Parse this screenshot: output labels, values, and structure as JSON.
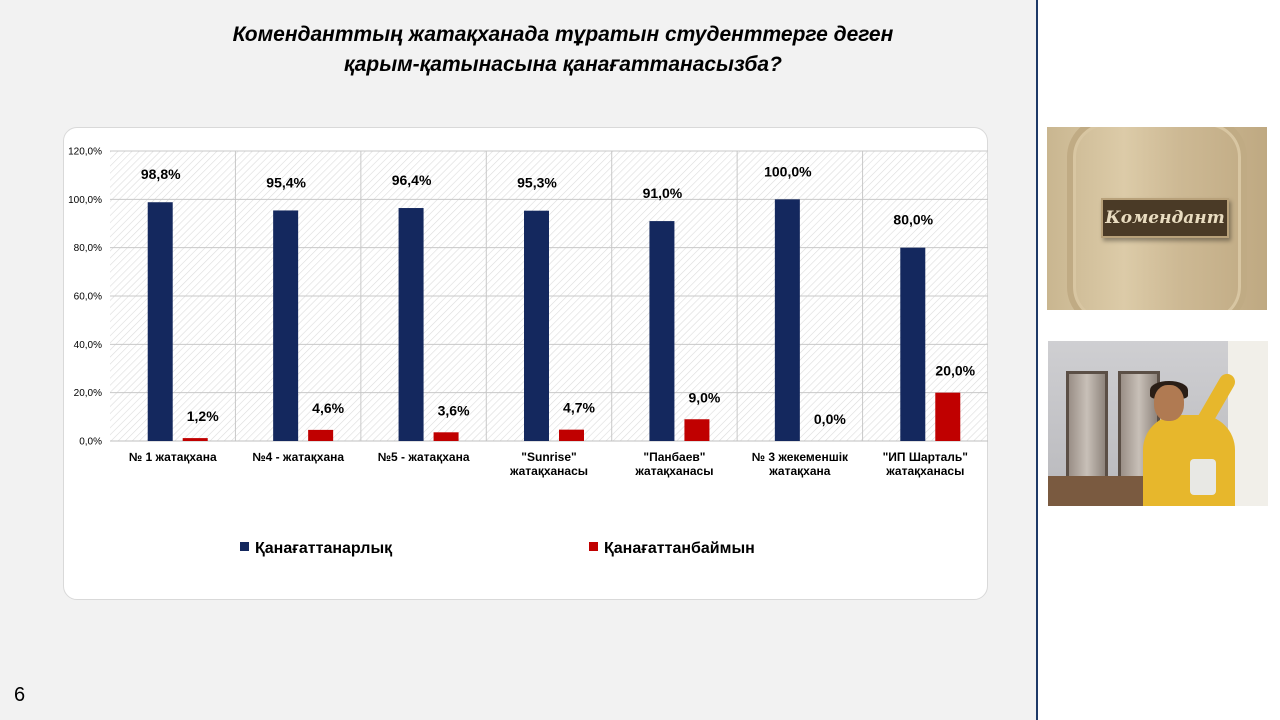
{
  "slide": {
    "title_line1": "Коменданттың жатақханада тұратын студенттерге деген",
    "title_line2": "қарым-қатынасына  қанағаттанасызба?",
    "page_number": "6",
    "door_sign": "Комендант"
  },
  "chart_data": {
    "type": "bar",
    "title": "",
    "xlabel": "",
    "ylabel": "",
    "ylim": [
      0,
      120
    ],
    "y_ticks": [
      "0,0%",
      "20,0%",
      "40,0%",
      "60,0%",
      "80,0%",
      "100,0%",
      "120,0%"
    ],
    "grid": true,
    "legend_position": "bottom",
    "categories": [
      [
        "№ 1  жатақхана"
      ],
      [
        "№4 - жатақхана"
      ],
      [
        "№5 - жатақхана"
      ],
      [
        "\"Sunrise\"",
        "жатақханасы"
      ],
      [
        "\"Панбаев\"",
        "жатақханасы"
      ],
      [
        "№ 3 жекеменшік",
        "жатақхана"
      ],
      [
        "\"ИП Шарталь\"",
        "жатақханасы"
      ]
    ],
    "series": [
      {
        "name": "Қанағаттанарлық",
        "color": "#14285e",
        "values": [
          98.8,
          95.4,
          96.4,
          95.3,
          91.0,
          100.0,
          80.0
        ],
        "labels": [
          "98,8%",
          "95,4%",
          "96,4%",
          "95,3%",
          "91,0%",
          "100,0%",
          "80,0%"
        ]
      },
      {
        "name": "Қанағаттанбаймын",
        "color": "#c00000",
        "values": [
          1.2,
          4.6,
          3.6,
          4.7,
          9.0,
          0.0,
          20.0
        ],
        "labels": [
          "1,2%",
          "4,6%",
          "3,6%",
          "4,7%",
          "9,0%",
          "0,0%",
          "20,0%"
        ]
      }
    ]
  }
}
